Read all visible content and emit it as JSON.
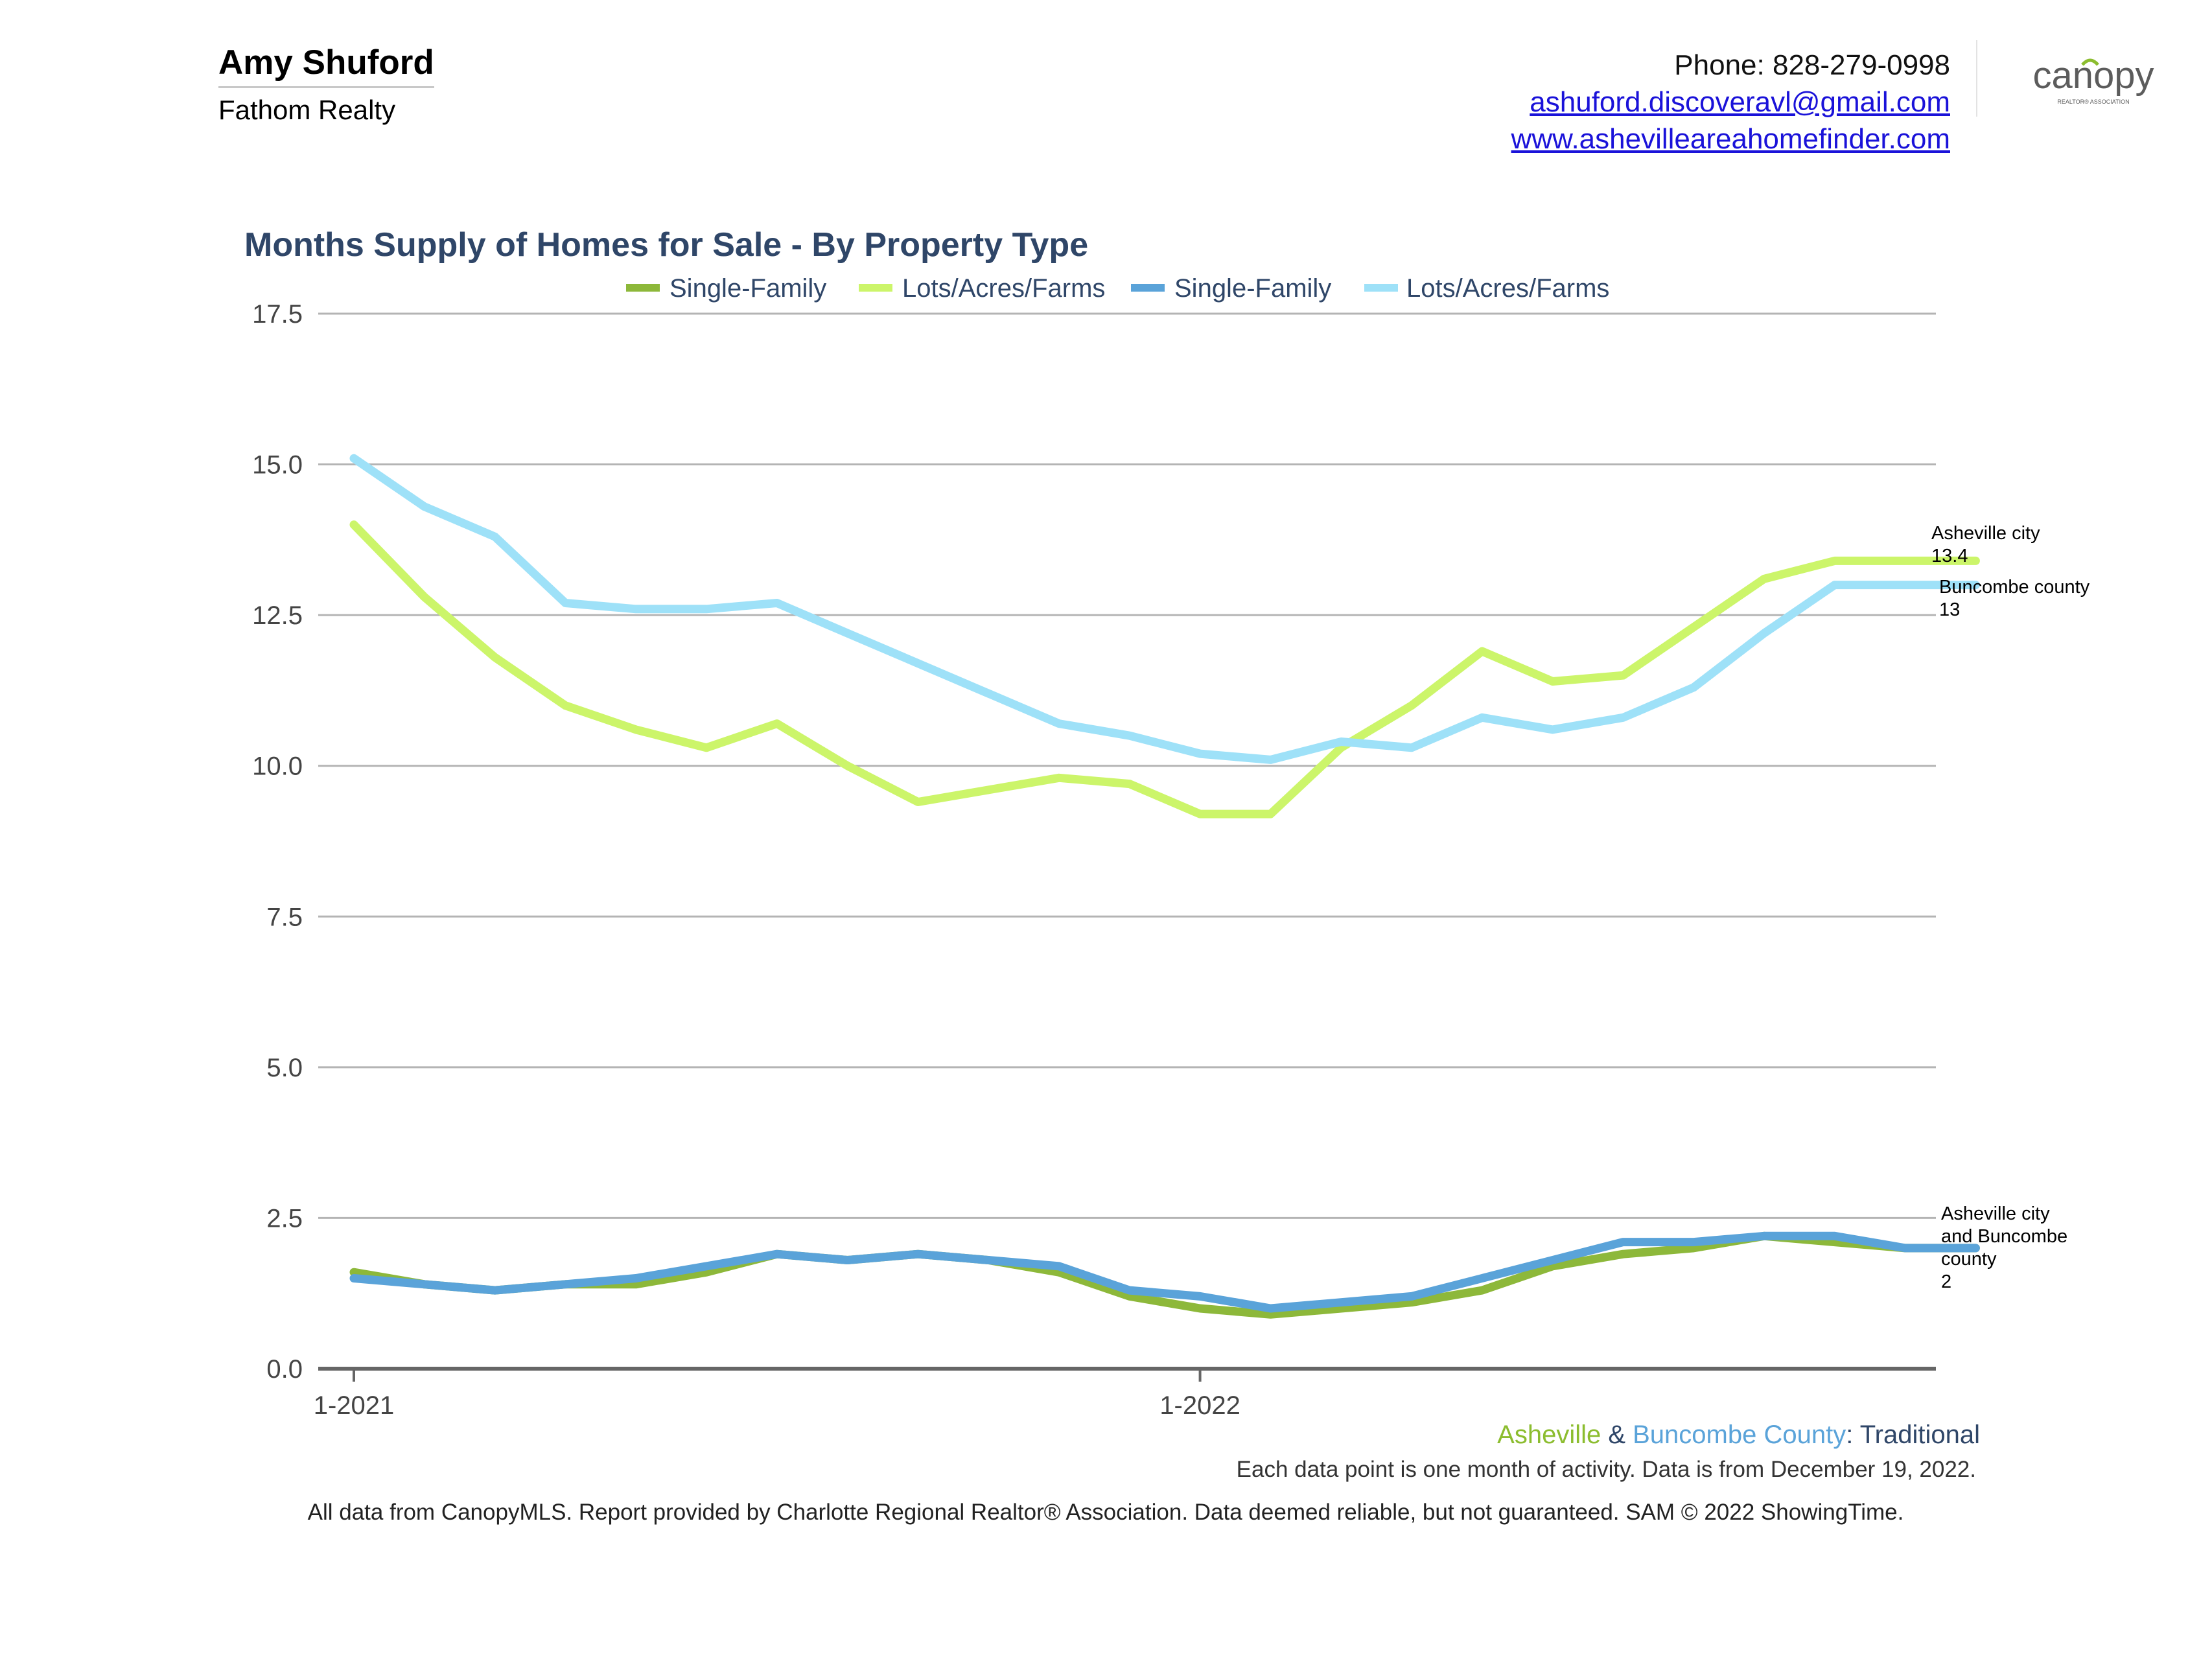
{
  "header": {
    "agent_name": "Amy Shuford",
    "company": "Fathom Realty",
    "phone": "Phone: 828-279-0998",
    "email": "ashuford.discoveravl@gmail.com",
    "website": "www.ashevilleareahomefinder.com",
    "logo_text": "canopy",
    "logo_subtext": "REALTOR® ASSOCIATION"
  },
  "colors": {
    "asheville_sf": "#8db83a",
    "asheville_lots": "#ccf56a",
    "buncombe_sf": "#5aa3d9",
    "buncombe_lots": "#9ee1f8",
    "title": "#2f4668",
    "asheville_text": "#8cbd2f",
    "buncombe_text": "#5aa3d9",
    "logo_green": "#8cbd2f",
    "logo_gray": "#5c5c5c"
  },
  "chart_data": {
    "type": "line",
    "title": "Months Supply of Homes for Sale - By Property Type",
    "ylim": [
      0,
      17.5
    ],
    "y_ticks": [
      "17.5",
      "15.0",
      "12.5",
      "10.0",
      "7.5",
      "5.0",
      "2.5",
      "0.0"
    ],
    "y_tick_values": [
      17.5,
      15,
      12.5,
      10,
      7.5,
      5,
      2.5,
      0
    ],
    "x_tick_labels": [
      {
        "label": "1-2021",
        "index": 0
      },
      {
        "label": "1-2022",
        "index": 12
      }
    ],
    "x": [
      "1-2021",
      "2-2021",
      "3-2021",
      "4-2021",
      "5-2021",
      "6-2021",
      "7-2021",
      "8-2021",
      "9-2021",
      "10-2021",
      "11-2021",
      "12-2021",
      "1-2022",
      "2-2022",
      "3-2022",
      "4-2022",
      "5-2022",
      "6-2022",
      "7-2022",
      "8-2022",
      "9-2022",
      "10-2022",
      "11-2022",
      "12-2022"
    ],
    "series": [
      {
        "name": "Single-Family",
        "region": "Asheville",
        "values": [
          1.6,
          1.4,
          1.3,
          1.4,
          1.4,
          1.6,
          1.9,
          1.8,
          1.9,
          1.8,
          1.6,
          1.2,
          1.0,
          0.9,
          1.0,
          1.1,
          1.3,
          1.7,
          1.9,
          2.0,
          2.2,
          2.1,
          2.0,
          2.0
        ]
      },
      {
        "name": "Lots/Acres/Farms",
        "region": "Asheville",
        "values": [
          14.0,
          12.8,
          11.8,
          11.0,
          10.6,
          10.3,
          10.7,
          10.0,
          9.4,
          9.6,
          9.8,
          9.7,
          9.2,
          9.2,
          10.3,
          11.0,
          11.9,
          11.4,
          11.5,
          12.3,
          13.1,
          13.4,
          13.4,
          13.4
        ]
      },
      {
        "name": "Single-Family",
        "region": "Buncombe County",
        "values": [
          1.5,
          1.4,
          1.3,
          1.4,
          1.5,
          1.7,
          1.9,
          1.8,
          1.9,
          1.8,
          1.7,
          1.3,
          1.2,
          1.0,
          1.1,
          1.2,
          1.5,
          1.8,
          2.1,
          2.1,
          2.2,
          2.2,
          2.0,
          2.0
        ]
      },
      {
        "name": "Lots/Acres/Farms",
        "region": "Buncombe County",
        "values": [
          15.1,
          14.3,
          13.8,
          12.7,
          12.6,
          12.6,
          12.7,
          12.2,
          11.7,
          11.2,
          10.7,
          10.5,
          10.2,
          10.1,
          10.4,
          10.3,
          10.8,
          10.6,
          10.8,
          11.3,
          12.2,
          13.0,
          13.0,
          13.0
        ]
      }
    ],
    "end_labels": {
      "asheville_lots": [
        "Asheville city",
        "13.4"
      ],
      "buncombe_lots": [
        "Buncombe county",
        "13"
      ],
      "single_family": [
        "Asheville city",
        "and Buncombe",
        "county",
        "2"
      ]
    },
    "legend_position": "top-center",
    "grid": true
  },
  "footer": {
    "asheville": "Asheville",
    "amp": " & ",
    "buncombe": "Buncombe County",
    "suffix": ": Traditional",
    "note": "Each data point is one month of activity. Data is from December 19, 2022.",
    "disclaimer": "All data from CanopyMLS. Report provided by Charlotte Regional Realtor® Association. Data deemed reliable, but not guaranteed. SAM © 2022 ShowingTime."
  }
}
